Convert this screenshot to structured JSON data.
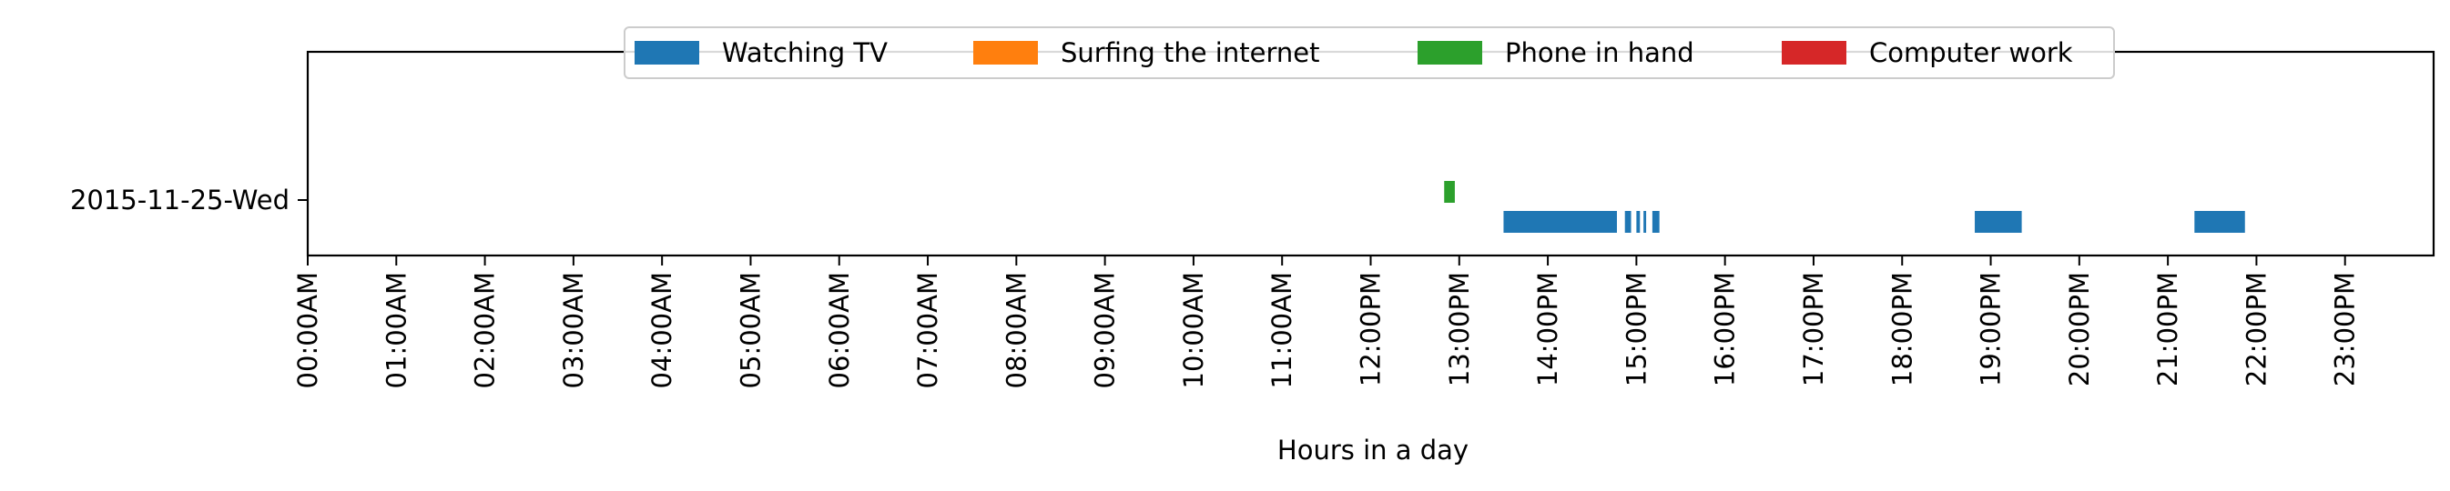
{
  "chart_data": {
    "type": "bar",
    "orientation": "horizontal-timeline",
    "title": "",
    "xlabel": "Hours in a day",
    "ylabel": "",
    "xlim": [
      0,
      24
    ],
    "x_ticks": [
      {
        "value": 0,
        "label": "00:00AM"
      },
      {
        "value": 1,
        "label": "01:00AM"
      },
      {
        "value": 2,
        "label": "02:00AM"
      },
      {
        "value": 3,
        "label": "03:00AM"
      },
      {
        "value": 4,
        "label": "04:00AM"
      },
      {
        "value": 5,
        "label": "05:00AM"
      },
      {
        "value": 6,
        "label": "06:00AM"
      },
      {
        "value": 7,
        "label": "07:00AM"
      },
      {
        "value": 8,
        "label": "08:00AM"
      },
      {
        "value": 9,
        "label": "09:00AM"
      },
      {
        "value": 10,
        "label": "10:00AM"
      },
      {
        "value": 11,
        "label": "11:00AM"
      },
      {
        "value": 12,
        "label": "12:00PM"
      },
      {
        "value": 13,
        "label": "13:00PM"
      },
      {
        "value": 14,
        "label": "14:00PM"
      },
      {
        "value": 15,
        "label": "15:00PM"
      },
      {
        "value": 16,
        "label": "16:00PM"
      },
      {
        "value": 17,
        "label": "17:00PM"
      },
      {
        "value": 18,
        "label": "18:00PM"
      },
      {
        "value": 19,
        "label": "19:00PM"
      },
      {
        "value": 20,
        "label": "20:00PM"
      },
      {
        "value": 21,
        "label": "21:00PM"
      },
      {
        "value": 22,
        "label": "22:00PM"
      },
      {
        "value": 23,
        "label": "23:00PM"
      }
    ],
    "categories": [
      "2015-11-25-Wed"
    ],
    "legend_position": "top-center",
    "grid": false,
    "series": [
      {
        "name": "Watching TV",
        "color": "#1f77b4",
        "lane": 0,
        "intervals": [
          {
            "day": "2015-11-25-Wed",
            "start": 13.5,
            "end": 14.78
          },
          {
            "day": "2015-11-25-Wed",
            "start": 14.87,
            "end": 14.94
          },
          {
            "day": "2015-11-25-Wed",
            "start": 15.0,
            "end": 15.04
          },
          {
            "day": "2015-11-25-Wed",
            "start": 15.08,
            "end": 15.11
          },
          {
            "day": "2015-11-25-Wed",
            "start": 15.18,
            "end": 15.26
          },
          {
            "day": "2015-11-25-Wed",
            "start": 18.82,
            "end": 19.35
          },
          {
            "day": "2015-11-25-Wed",
            "start": 21.3,
            "end": 21.87
          }
        ]
      },
      {
        "name": "Surfing the internet",
        "color": "#ff7f0e",
        "lane": 1,
        "intervals": []
      },
      {
        "name": "Phone in hand",
        "color": "#2ca02c",
        "lane": 2,
        "intervals": [
          {
            "day": "2015-11-25-Wed",
            "start": 12.83,
            "end": 12.95
          }
        ]
      },
      {
        "name": "Computer work",
        "color": "#d62728",
        "lane": 3,
        "intervals": []
      }
    ]
  }
}
